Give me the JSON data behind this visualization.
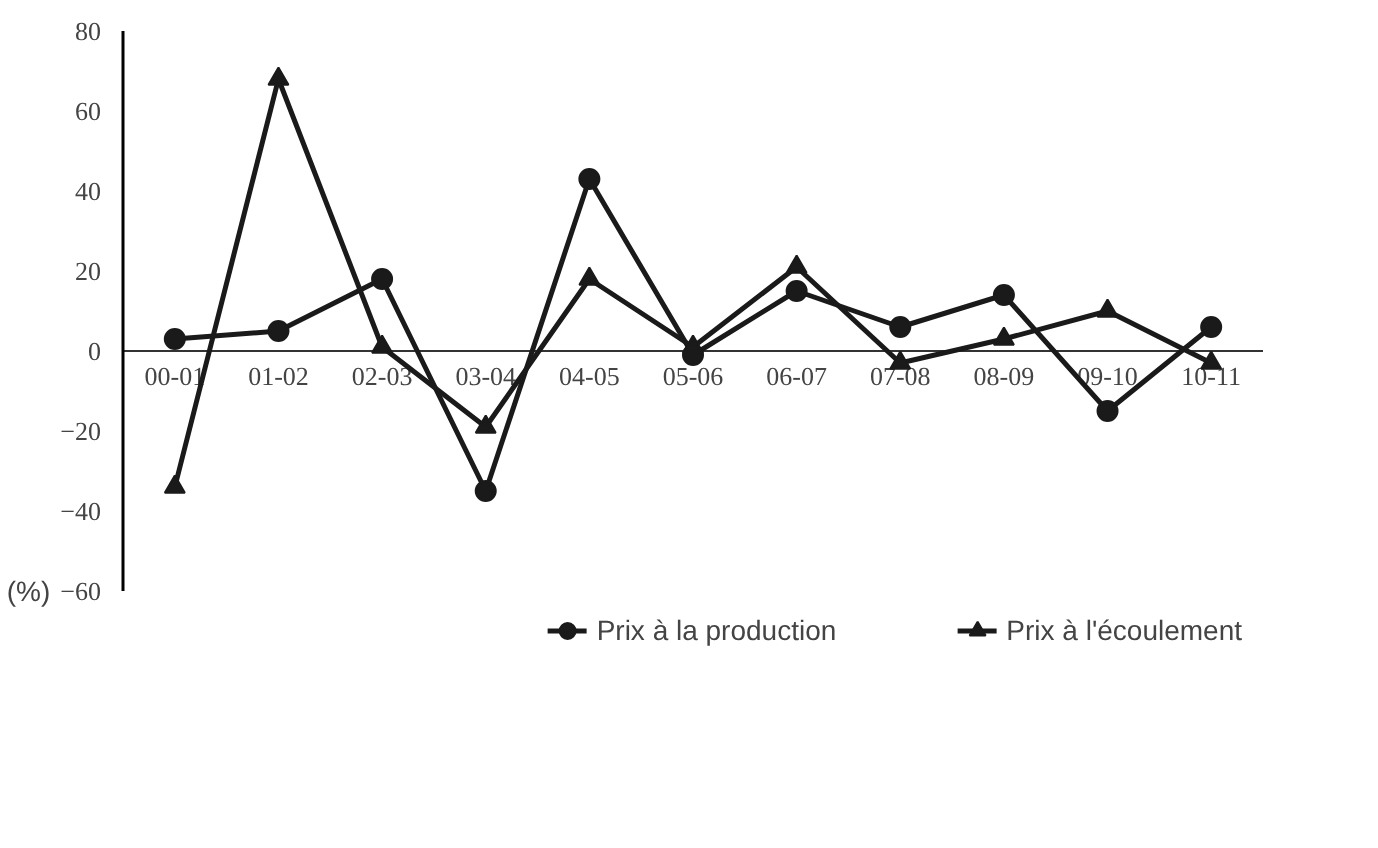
{
  "chart_data": {
    "type": "line",
    "ylabel": "(%)",
    "categories": [
      "00-01",
      "01-02",
      "02-03",
      "03-04",
      "04-05",
      "05-06",
      "06-07",
      "07-08",
      "08-09",
      "09-10",
      "10-11"
    ],
    "series": [
      {
        "name": "Prix à la production",
        "color": "#1a1a1a",
        "marker": "circle",
        "values": [
          3,
          5,
          18,
          -35,
          43,
          -1,
          15,
          6,
          14,
          -15,
          6
        ]
      },
      {
        "name": "Prix à l'écoulement",
        "color": "#1a1a1a",
        "marker": "triangle",
        "values": [
          -34,
          68,
          1,
          -19,
          18,
          1,
          21,
          -3,
          3,
          10,
          -3
        ]
      }
    ],
    "ylim": [
      -60,
      80
    ],
    "yticks": [
      -60,
      -40,
      -20,
      0,
      20,
      40,
      60,
      80
    ],
    "grid": false,
    "legend": "bottom",
    "line_style": "solid"
  }
}
